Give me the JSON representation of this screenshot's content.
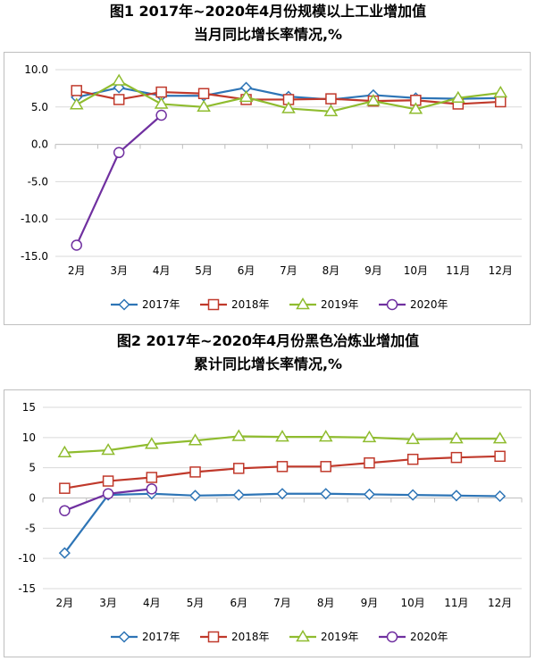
{
  "chart_data": [
    {
      "type": "line",
      "title_line1": "图1 2017年~2020年4月份规模以上工业增加值",
      "title_line2": "当月同比增长率情况,%",
      "categories": [
        "2月",
        "3月",
        "4月",
        "5月",
        "6月",
        "7月",
        "8月",
        "9月",
        "10月",
        "11月",
        "12月"
      ],
      "ylim": [
        -15,
        10
      ],
      "yticks": [
        "10.0",
        "5.0",
        "0.0",
        "-5.0",
        "-10.0",
        "-15.0"
      ],
      "ytick_values": [
        10,
        5,
        0,
        -5,
        -10,
        -15
      ],
      "legend_position": "bottom",
      "series": [
        {
          "name": "2017年",
          "color": "#2e75b6",
          "marker": "diamond",
          "values": [
            6.3,
            7.6,
            6.5,
            6.5,
            7.6,
            6.4,
            6.0,
            6.6,
            6.2,
            6.1,
            6.2
          ]
        },
        {
          "name": "2018年",
          "color": "#c0392b",
          "marker": "square",
          "values": [
            7.2,
            6.0,
            7.0,
            6.8,
            6.0,
            6.0,
            6.1,
            5.8,
            5.9,
            5.4,
            5.7
          ]
        },
        {
          "name": "2019年",
          "color": "#8fbc2f",
          "marker": "triangle",
          "values": [
            5.3,
            8.5,
            5.4,
            5.0,
            6.3,
            4.8,
            4.4,
            5.8,
            4.7,
            6.2,
            6.9
          ]
        },
        {
          "name": "2020年",
          "color": "#7030a0",
          "marker": "circle",
          "values": [
            -13.5,
            -1.1,
            3.9,
            null,
            null,
            null,
            null,
            null,
            null,
            null,
            null
          ]
        }
      ]
    },
    {
      "type": "line",
      "title_line1": "图2 2017年~2020年4月份黑色冶炼业增加值",
      "title_line2": "累计同比增长率情况,%",
      "categories": [
        "2月",
        "3月",
        "4月",
        "5月",
        "6月",
        "7月",
        "8月",
        "9月",
        "10月",
        "11月",
        "12月"
      ],
      "ylim": [
        -15,
        15
      ],
      "yticks": [
        "15",
        "10",
        "5",
        "0",
        "-5",
        "-10",
        "-15"
      ],
      "ytick_values": [
        15,
        10,
        5,
        0,
        -5,
        -10,
        -15
      ],
      "legend_position": "bottom",
      "series": [
        {
          "name": "2017年",
          "color": "#2e75b6",
          "marker": "diamond",
          "values": [
            -9.1,
            0.5,
            0.7,
            0.4,
            0.5,
            0.7,
            0.7,
            0.6,
            0.5,
            0.4,
            0.3
          ]
        },
        {
          "name": "2018年",
          "color": "#c0392b",
          "marker": "square",
          "values": [
            1.6,
            2.8,
            3.4,
            4.3,
            4.9,
            5.2,
            5.2,
            5.8,
            6.4,
            6.7,
            6.9
          ]
        },
        {
          "name": "2019年",
          "color": "#8fbc2f",
          "marker": "triangle",
          "values": [
            7.5,
            7.9,
            8.9,
            9.5,
            10.2,
            10.1,
            10.1,
            10.0,
            9.7,
            9.8,
            9.8
          ]
        },
        {
          "name": "2020年",
          "color": "#7030a0",
          "marker": "circle",
          "values": [
            -2.1,
            0.7,
            1.5,
            null,
            null,
            null,
            null,
            null,
            null,
            null,
            null
          ]
        }
      ]
    }
  ]
}
